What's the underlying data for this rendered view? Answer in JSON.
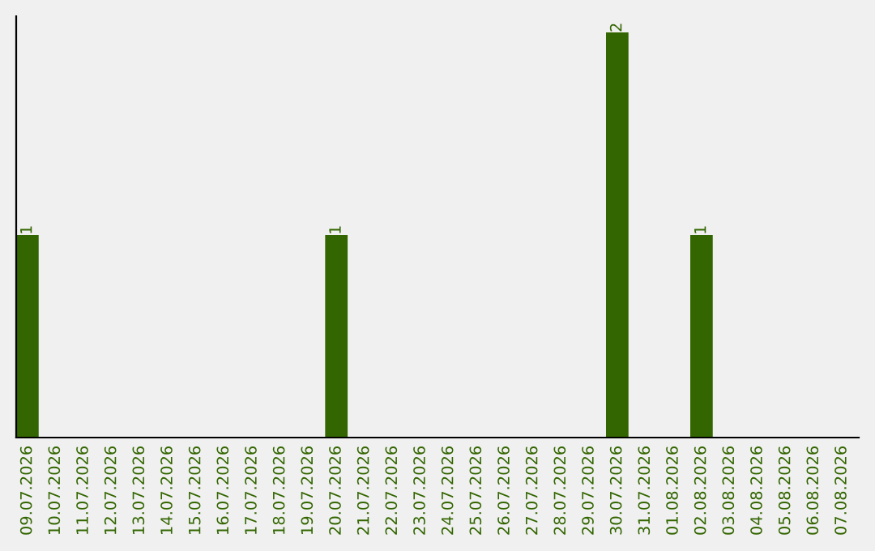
{
  "chart_data": {
    "type": "bar",
    "categories": [
      "09.07.2026",
      "10.07.2026",
      "11.07.2026",
      "12.07.2026",
      "13.07.2026",
      "14.07.2026",
      "15.07.2026",
      "16.07.2026",
      "17.07.2026",
      "18.07.2026",
      "19.07.2026",
      "20.07.2026",
      "21.07.2026",
      "22.07.2026",
      "23.07.2026",
      "24.07.2026",
      "25.07.2026",
      "26.07.2026",
      "27.07.2026",
      "28.07.2026",
      "29.07.2026",
      "30.07.2026",
      "31.07.2026",
      "01.08.2026",
      "02.08.2026",
      "03.08.2026",
      "04.08.2026",
      "05.08.2026",
      "06.08.2026",
      "07.08.2026"
    ],
    "values": [
      1,
      0,
      0,
      0,
      0,
      0,
      0,
      0,
      0,
      0,
      0,
      1,
      0,
      0,
      0,
      0,
      0,
      0,
      0,
      0,
      0,
      2,
      0,
      0,
      1,
      0,
      0,
      0,
      0,
      0
    ],
    "value_labels": [
      "1",
      null,
      null,
      null,
      null,
      null,
      null,
      null,
      null,
      null,
      null,
      "1",
      null,
      null,
      null,
      null,
      null,
      null,
      null,
      null,
      null,
      "2",
      null,
      null,
      "1",
      null,
      null,
      null,
      null,
      null
    ],
    "color": "#336600",
    "tick_labels": "x",
    "grid": false,
    "legend": false
  }
}
